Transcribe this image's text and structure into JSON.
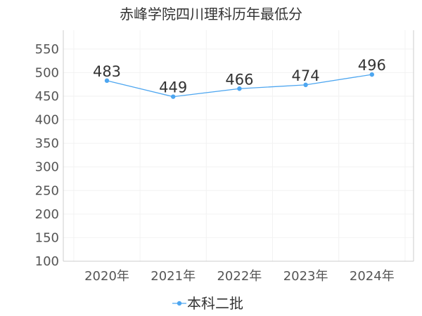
{
  "chart_data": {
    "type": "line",
    "title": "赤峰学院四川理科历年最低分",
    "xlabel": "",
    "ylabel": "",
    "categories": [
      "2020年",
      "2021年",
      "2022年",
      "2023年",
      "2024年"
    ],
    "series": [
      {
        "name": "本科二批",
        "values": [
          483,
          449,
          466,
          474,
          496
        ]
      }
    ],
    "ylim": [
      100,
      590
    ],
    "yticks": [
      100,
      150,
      200,
      250,
      300,
      350,
      400,
      450,
      500,
      550
    ],
    "grid": true,
    "legend": "bottom",
    "colors": {
      "series": "#4da6f0",
      "axis": "#cccccc",
      "grid": "#f2f2f2"
    }
  }
}
